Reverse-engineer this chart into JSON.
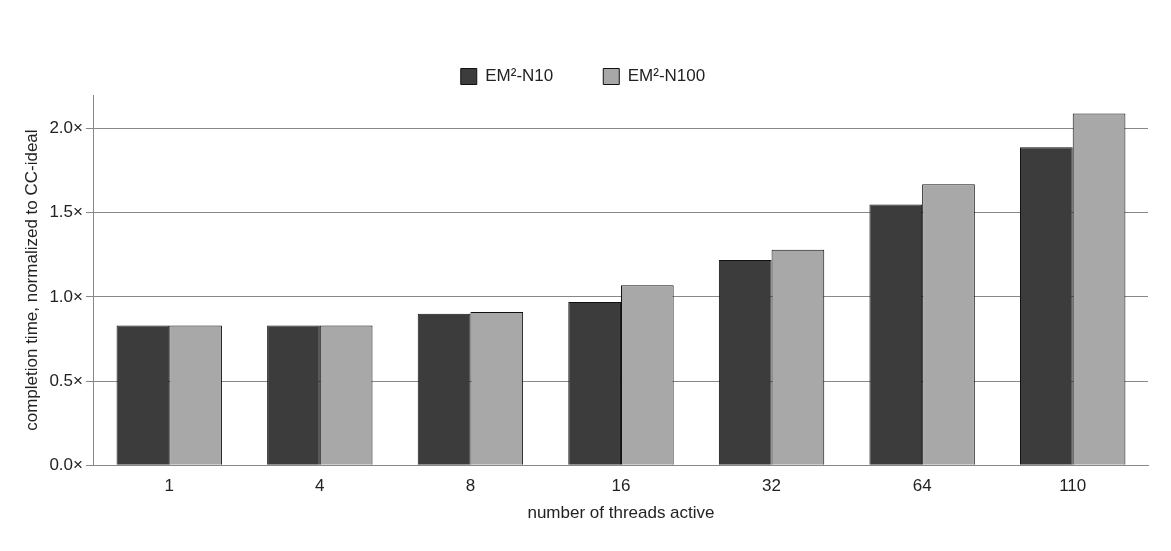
{
  "chart_data": {
    "type": "bar",
    "xlabel": "number of threads active",
    "ylabel": "completion time, normalized to CC-ideal",
    "categories": [
      "1",
      "4",
      "8",
      "16",
      "32",
      "64",
      "110"
    ],
    "series": [
      {
        "name": "EM²-N10",
        "color": "#3c3c3c",
        "values": [
          0.83,
          0.83,
          0.9,
          0.97,
          1.22,
          1.55,
          1.89
        ]
      },
      {
        "name": "EM²-N100",
        "color": "#a8a8a8",
        "values": [
          0.83,
          0.83,
          0.91,
          1.07,
          1.28,
          1.67,
          2.09
        ]
      }
    ],
    "ylim": [
      0,
      2.2
    ],
    "yticks": [
      {
        "value": 0,
        "label": "0.0×"
      },
      {
        "value": 0.5,
        "label": "0.5×"
      },
      {
        "value": 1,
        "label": "1.0×"
      },
      {
        "value": 1.5,
        "label": "1.5×"
      },
      {
        "value": 2,
        "label": "2.0×"
      }
    ],
    "grid": "y",
    "legend": "top"
  }
}
